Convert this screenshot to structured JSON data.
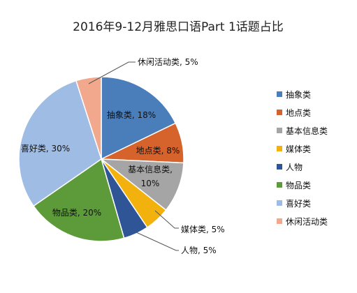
{
  "chart_data": {
    "type": "pie",
    "title": "2016年9-12月雅思口语Part 1话题占比",
    "legend_position": "right",
    "slices": [
      {
        "name": "抽象类",
        "value": 18,
        "label": "抽象类, 18%",
        "color": "#4a7ebb"
      },
      {
        "name": "地点类",
        "value": 8,
        "label": "地点类, 8%",
        "color": "#d6632b"
      },
      {
        "name": "基本信息类",
        "value": 10,
        "label": "基本信息类, 10%",
        "color": "#a5a5a5"
      },
      {
        "name": "媒体类",
        "value": 5,
        "label": "媒体类, 5%",
        "color": "#f2b10c"
      },
      {
        "name": "人物",
        "value": 5,
        "label": "人物, 5%",
        "color": "#2f5597"
      },
      {
        "name": "物品类",
        "value": 20,
        "label": "物品类, 20%",
        "color": "#5d9a3a"
      },
      {
        "name": "喜好类",
        "value": 30,
        "label": "喜好类, 30%",
        "color": "#9fbde4"
      },
      {
        "name": "休闲活动类",
        "value": 5,
        "label": "休闲活动类, 5%",
        "color": "#f2a88c"
      }
    ]
  }
}
